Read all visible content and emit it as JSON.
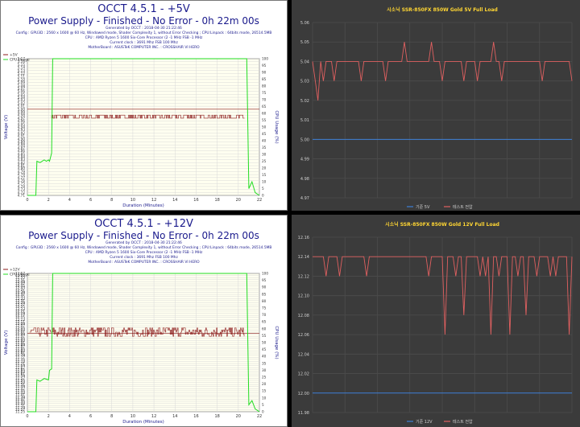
{
  "panels": [
    {
      "title": "OCCT 4.5.1 - +5V",
      "subtitle": "Power Supply - Finished - No Error - 0h 22m 00s",
      "info": [
        "Generated by OCCT : 2018-04-30 21:22:46",
        "Config : GPU3D : 2560 x 1600 @ 60 Hz, Windowed mode, Shader Complexity 1, without Error Checking ; CPU:Linpack : 64bits mode, 26514.5MB",
        "CPU : AMD Ryzen 5 1600 Six-Core Processor (2 -1 MHz FSB -1 MHz",
        "Current clock : 3691 Mhz FSB 100 Mhz",
        "MotherBoard : ASUSTeK COMPUTER INC. : CROSSHAIR VI HERO"
      ]
    },
    {
      "title": "OCCT 4.5.1 - +12V",
      "subtitle": "Power Supply - Finished - No Error - 0h 22m 00s",
      "info": [
        "Generated by OCCT : 2018-04-30 21:22:46",
        "Config : GPU3D : 2560 x 1600 @ 60 Hz, Windowed mode, Shader Complexity 1, without Error Checking ; CPU:Linpack : 64bits mode, 26514.5MB",
        "CPU : AMD Ryzen 5 1600 Six-Core Processor (2 -1 MHz FSB -1 MHz",
        "Current clock : 3691 Mhz FSB 100 Mhz",
        "MotherBoard : ASUSTeK COMPUTER INC. : CROSSHAIR VI HERO"
      ]
    }
  ],
  "colors": {
    "voltage": "#8b1a1a",
    "cpu_usage": "#22dd22",
    "occt_text": "#1a1a8c",
    "dark_bg": "#3b3b3b",
    "dark_grid": "#4c4c4c",
    "reference_line": "#3d7fd6",
    "test_line": "#e06060",
    "dark_title": "#ffd633"
  },
  "chart_data": [
    {
      "type": "line",
      "legend": [
        "+5V",
        "CPU Usage"
      ],
      "legend_placement": "top-left",
      "xlabel": "Duration (Minutes)",
      "ylabel": "Voltage (V)",
      "y2label": "CPU Usage (%)",
      "x_ticks": [
        0,
        2,
        4,
        6,
        8,
        10,
        12,
        14,
        16,
        18,
        20,
        22
      ],
      "xlim": [
        0,
        22
      ],
      "y_ticks": [
        "4.71",
        "4.72",
        "4.73",
        "4.74",
        "4.75",
        "4.76",
        "4.77",
        "4.78",
        "4.79",
        "4.80",
        "4.81",
        "4.82",
        "4.83",
        "4.84",
        "4.85",
        "4.86",
        "4.87",
        "4.88",
        "4.89",
        "4.90",
        "4.91",
        "4.92",
        "4.93",
        "4.94",
        "4.95",
        "4.96",
        "4.97",
        "4.98",
        "4.99",
        "5.00",
        "5.01",
        "5.02",
        "5.03",
        "5.04",
        "5.05",
        "5.06",
        "5.07",
        "5.08",
        "5.09",
        "5.10",
        "5.11",
        "5.12",
        "5.13",
        "5.14",
        "5.15",
        "5.16",
        "5.17"
      ],
      "ylim": [
        4.71,
        5.17
      ],
      "y2_ticks": [
        0,
        5,
        10,
        15,
        20,
        25,
        30,
        35,
        40,
        45,
        50,
        55,
        60,
        65,
        70,
        75,
        80,
        85,
        90,
        95,
        100
      ],
      "y2lim": [
        0,
        100
      ],
      "reference_value": 5.0,
      "voltage": {
        "start": 2.3,
        "end": 20.6,
        "values": [
          4.97,
          4.98
        ]
      },
      "cpu_usage": {
        "x": [
          0,
          0.8,
          0.9,
          1.2,
          1.6,
          1.8,
          2.0,
          2.1,
          2.3,
          2.4,
          2.6,
          20.6,
          20.8,
          21.0,
          21.3,
          21.6,
          22
        ],
        "values": [
          0,
          0,
          25,
          24,
          26,
          25,
          26,
          25,
          31,
          100,
          100,
          100,
          100,
          5,
          10,
          2,
          0
        ]
      }
    },
    {
      "type": "line",
      "title": "시소닉 SSR-850FX 850W Gold 5V Full Load",
      "legend": [
        "기준 5V",
        "테스트 전압"
      ],
      "legend_placement": "bottom",
      "y_ticks": [
        "4.97",
        "4.98",
        "4.99",
        "5.00",
        "5.01",
        "5.02",
        "5.03",
        "5.04",
        "5.05",
        "5.06"
      ],
      "ylim": [
        4.97,
        5.06
      ],
      "grid": true,
      "reference_value": 5.0,
      "test_values": [
        5.04,
        5.03,
        5.02,
        5.04,
        5.03,
        5.04,
        5.04,
        5.04,
        5.03,
        5.04,
        5.04,
        5.04,
        5.04,
        5.04,
        5.04,
        5.04,
        5.04,
        5.04,
        5.03,
        5.04,
        5.04,
        5.04,
        5.04,
        5.04,
        5.04,
        5.04,
        5.04,
        5.03,
        5.04,
        5.04,
        5.04,
        5.04,
        5.04,
        5.04,
        5.05,
        5.04,
        5.04,
        5.04,
        5.04,
        5.04,
        5.04,
        5.04,
        5.04,
        5.04,
        5.05,
        5.04,
        5.04,
        5.04,
        5.03,
        5.04,
        5.04,
        5.04,
        5.04,
        5.04,
        5.04,
        5.04,
        5.03,
        5.04,
        5.04,
        5.04,
        5.04,
        5.03,
        5.04,
        5.04,
        5.04,
        5.04,
        5.04,
        5.05,
        5.04,
        5.04,
        5.03,
        5.04,
        5.04,
        5.04,
        5.04,
        5.04,
        5.04,
        5.04,
        5.04,
        5.04,
        5.04,
        5.04,
        5.04,
        5.04,
        5.04,
        5.03,
        5.04,
        5.04,
        5.04,
        5.04,
        5.04,
        5.04,
        5.04,
        5.04,
        5.04,
        5.04,
        5.03
      ]
    },
    {
      "type": "line",
      "legend": [
        "+12V",
        "CPU Usage"
      ],
      "legend_placement": "top-left",
      "xlabel": "Duration (Minutes)",
      "ylabel": "Voltage (V)",
      "y2label": "CPU Usage (%)",
      "x_ticks": [
        0,
        2,
        4,
        6,
        8,
        10,
        12,
        14,
        16,
        18,
        20,
        22
      ],
      "xlim": [
        0,
        22
      ],
      "y_ticks": [
        "11.25",
        "11.27",
        "11.29",
        "11.31",
        "11.33",
        "11.35",
        "11.37",
        "11.39",
        "11.41",
        "11.43",
        "11.45",
        "11.47",
        "11.49",
        "11.51",
        "11.53",
        "11.55",
        "11.57",
        "11.59",
        "11.61",
        "11.63",
        "11.65",
        "11.67",
        "11.69",
        "11.71",
        "11.73",
        "11.75",
        "11.77",
        "11.79",
        "11.81",
        "11.83",
        "11.85",
        "11.87",
        "11.89",
        "11.91",
        "11.93",
        "11.95",
        "11.97",
        "11.99",
        "12.01",
        "12.03",
        "12.05",
        "12.07",
        "12.09",
        "12.11",
        "12.13",
        "12.15",
        "12.17",
        "12.19",
        "12.21",
        "12.23",
        "12.25",
        "12.27",
        "12.29",
        "12.31",
        "12.33",
        "12.35",
        "12.37",
        "12.39",
        "12.41",
        "12.43",
        "12.45",
        "12.47",
        "12.49",
        "12.51",
        "12.53",
        "12.55",
        "12.57"
      ],
      "ylim": [
        11.25,
        12.57
      ],
      "y2_ticks": [
        0,
        5,
        10,
        15,
        20,
        25,
        30,
        35,
        40,
        45,
        50,
        55,
        60,
        65,
        70,
        75,
        80,
        85,
        90,
        95,
        100
      ],
      "y2lim": [
        0,
        100
      ],
      "reference_value": 12.0,
      "voltage": {
        "start": 0.2,
        "end": 20.6,
        "values": [
          11.97,
          11.99,
          12.01,
          12.03,
          12.05
        ]
      },
      "cpu_usage": {
        "x": [
          0,
          0.8,
          0.9,
          1.2,
          1.6,
          2.0,
          2.1,
          2.3,
          2.4,
          2.6,
          20.6,
          20.8,
          21.0,
          21.3,
          21.6,
          22
        ],
        "values": [
          0,
          0,
          23,
          22,
          24,
          23,
          30,
          31,
          100,
          100,
          100,
          100,
          5,
          8,
          2,
          0
        ]
      }
    },
    {
      "type": "line",
      "title": "시소닉 SSR-850FX 850W Gold 12V Full Load",
      "legend": [
        "기준 12V",
        "테스트 전압"
      ],
      "legend_placement": "bottom",
      "y_ticks": [
        "11.98",
        "12.00",
        "12.02",
        "12.04",
        "12.06",
        "12.08",
        "12.10",
        "12.12",
        "12.14",
        "12.16"
      ],
      "ylim": [
        11.98,
        12.16
      ],
      "grid": true,
      "reference_value": 12.0,
      "test_values": [
        12.14,
        12.14,
        12.14,
        12.14,
        12.14,
        12.12,
        12.14,
        12.14,
        12.14,
        12.14,
        12.12,
        12.14,
        12.14,
        12.14,
        12.14,
        12.14,
        12.14,
        12.14,
        12.14,
        12.14,
        12.12,
        12.14,
        12.14,
        12.14,
        12.14,
        12.14,
        12.14,
        12.14,
        12.14,
        12.14,
        12.14,
        12.14,
        12.14,
        12.14,
        12.14,
        12.14,
        12.14,
        12.14,
        12.14,
        12.14,
        12.14,
        12.14,
        12.14,
        12.12,
        12.14,
        12.14,
        12.14,
        12.14,
        12.14,
        12.06,
        12.14,
        12.14,
        12.14,
        12.12,
        12.14,
        12.14,
        12.08,
        12.14,
        12.14,
        12.14,
        12.14,
        12.14,
        12.12,
        12.14,
        12.12,
        12.14,
        12.06,
        12.14,
        12.14,
        12.12,
        12.14,
        12.14,
        12.14,
        12.06,
        12.14,
        12.14,
        12.12,
        12.14,
        12.14,
        12.08,
        12.14,
        12.14,
        12.14,
        12.12,
        12.14,
        12.14,
        12.14,
        12.14,
        12.12,
        12.14,
        12.12,
        12.14,
        12.14,
        12.14,
        12.14,
        12.06,
        12.14
      ]
    }
  ]
}
